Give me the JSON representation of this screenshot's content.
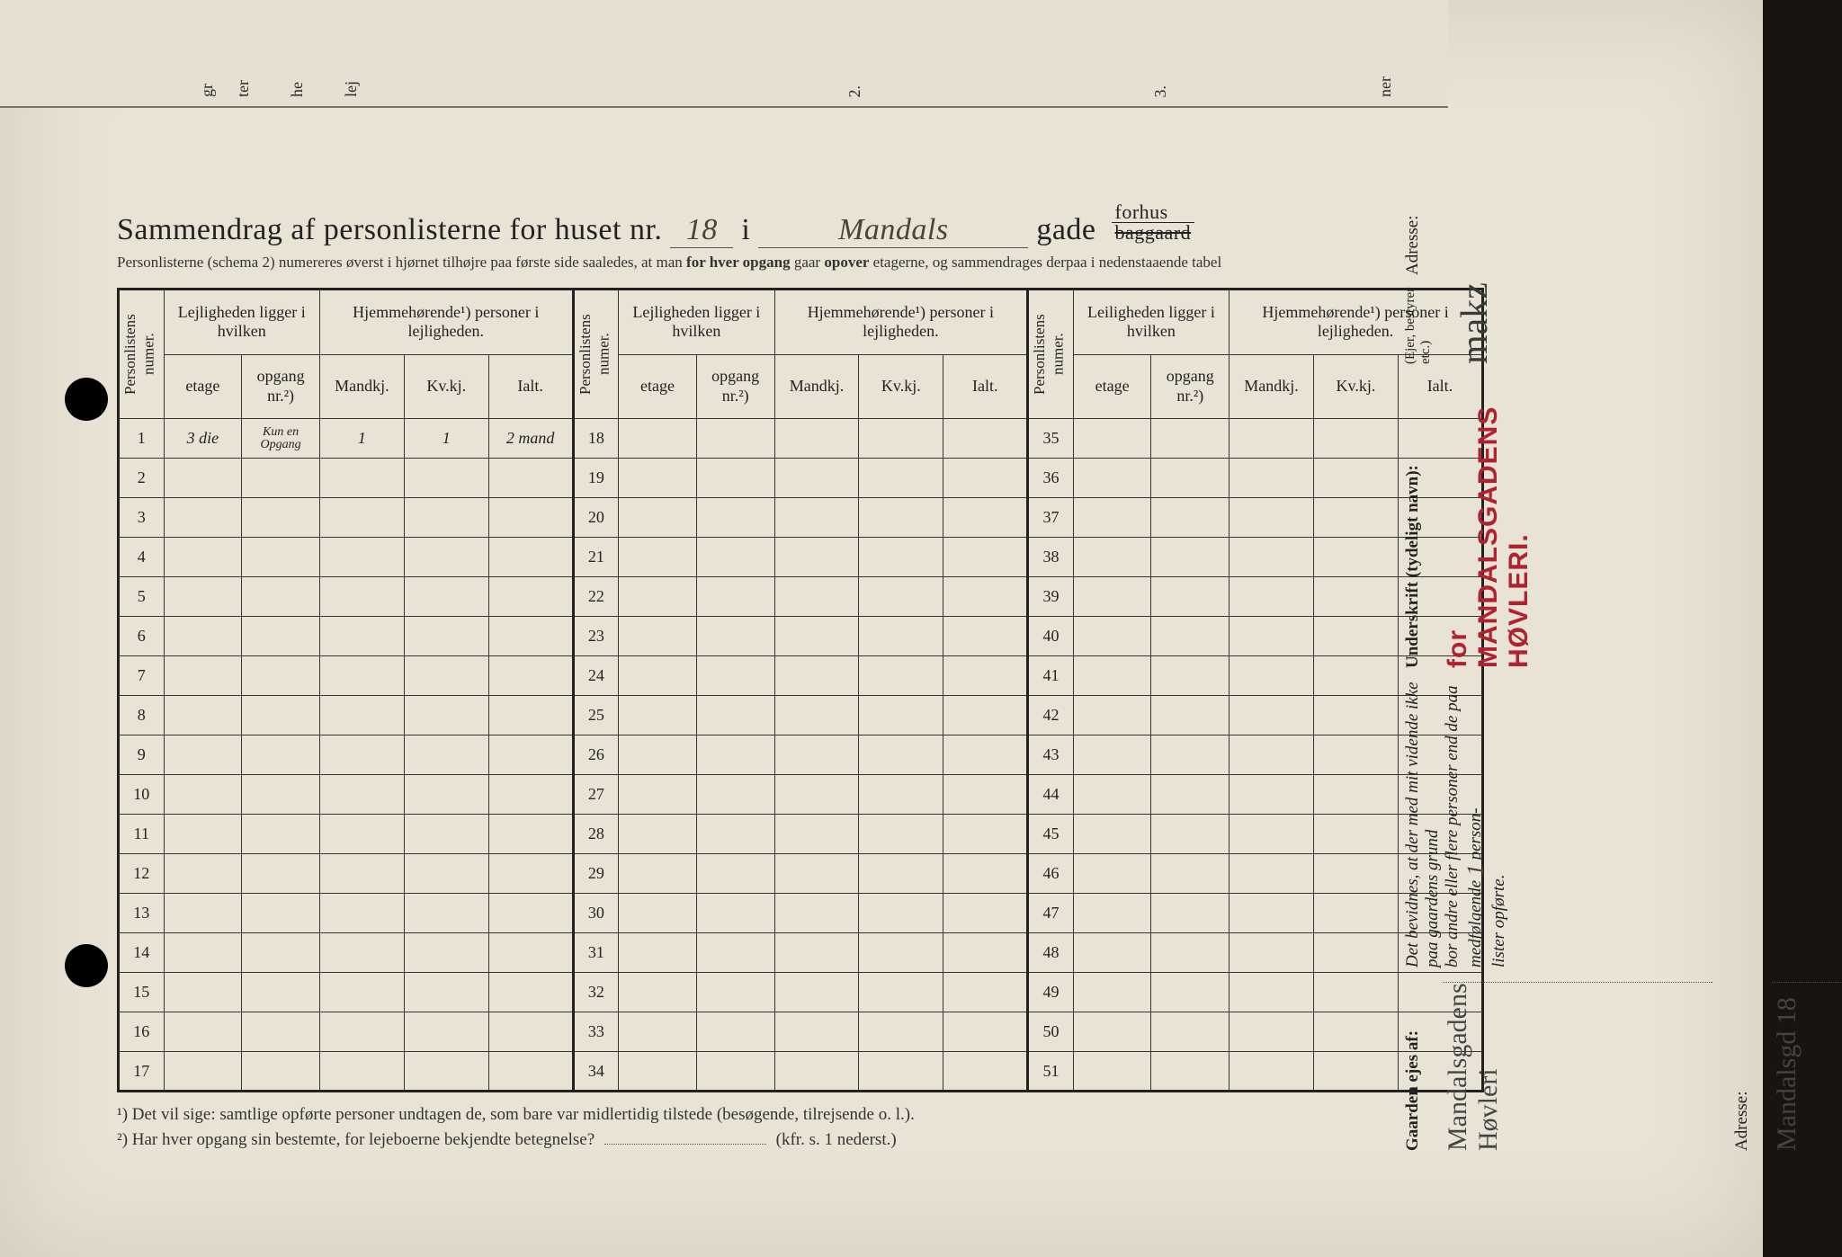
{
  "title": {
    "prefix": "Sammendrag af personlisterne for huset nr.",
    "house_nr": "18",
    "sep_i": "i",
    "street": "Mandals",
    "gade": "gade",
    "forhus": "forhus",
    "baggaard": "baggaard"
  },
  "subnote": {
    "text_a": "Personlisterne (schema 2) numereres øverst i hjørnet tilhøjre paa første side saaledes, at man ",
    "bold_a": "for hver opgang",
    "text_b": " gaar ",
    "bold_b": "opover",
    "text_c": " etagerne, og sammendrages derpaa i nedenstaaende tabel"
  },
  "headers": {
    "numer": "Personlistens numer.",
    "lejlighed": "Lejligheden ligger i hvilken",
    "leilighed": "Leiligheden ligger i hvilken",
    "hjem": "Hjemmehørende¹) personer i lejligheden.",
    "etage": "etage",
    "opgang": "opgang nr.²)",
    "mandkj": "Mandkj.",
    "kvkj": "Kv.kj.",
    "ialt": "Ialt."
  },
  "row_start": [
    1,
    18,
    35
  ],
  "row_count": 17,
  "row1": {
    "etage": "3 die",
    "opgang": "Kun en Opgang",
    "mand": "1",
    "kv": "1",
    "ialt": "2 mand"
  },
  "footnotes": {
    "f1": "¹)  Det vil sige: samtlige opførte personer undtagen de, som bare var midlertidig tilstede (besøgende, tilrejsende o. l.).",
    "f2a": "²)  Har hver opgang sin bestemte, for lejeboerne bekjendte betegnelse?",
    "f2b": "(kfr. s. 1 nederst.)"
  },
  "right": {
    "bevid_a": "Det bevidnes, at der med mit vidende ikke paa gaardens grund",
    "bevid_b": "bor andre eller flere personer end de paa medfølgende",
    "bevid_count": "1",
    "bevid_c": "person-",
    "bevid_d": "lister opførte.",
    "underskrift_label": "Underskrift (tydeligt navn):",
    "stamp": "for MANDALSGADENS HØVLERI.",
    "ejer_note": "(Ejer, bestyrer etc.)",
    "signature": "makz",
    "adresse_label": "Adresse:",
    "gaarden_label": "Gaarden ejes af:",
    "owner_hand": "Mandalsgadens Høvleri",
    "addr_hand": "Mandalsgd 18"
  },
  "colors": {
    "paper": "#e8e3d5",
    "ink": "#222222",
    "stamp": "#b0222f",
    "background": "#1a1410"
  }
}
